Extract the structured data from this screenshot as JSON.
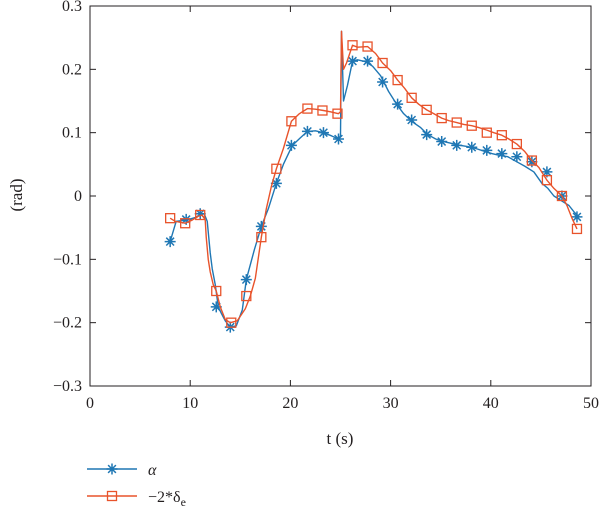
{
  "chart_data": {
    "type": "line",
    "xlabel": "t (s)",
    "ylabel": "(rad)",
    "xlim": [
      0,
      50
    ],
    "ylim": [
      -0.3,
      0.3
    ],
    "x_ticks": [
      0,
      10,
      20,
      30,
      40,
      50
    ],
    "x_tick_labels": [
      "0",
      "10",
      "20",
      "30",
      "40",
      "50"
    ],
    "y_ticks": [
      -0.3,
      -0.2,
      -0.1,
      0,
      0.1,
      0.2,
      0.3
    ],
    "y_tick_labels": [
      "−0.3",
      "−0.2",
      "−0.1",
      "0",
      "0.1",
      "0.2",
      "0.3"
    ],
    "grid": false,
    "legend_position": "below-left",
    "series": [
      {
        "name": "α",
        "color": "#1f77b4",
        "marker": "asterisk",
        "x": [
          8.0,
          8.6,
          9.6,
          10.5,
          11.0,
          11.4,
          11.7,
          12.0,
          12.2,
          12.5,
          12.8,
          13.1,
          13.5,
          14.0,
          14.6,
          15.2,
          15.6,
          16.4,
          17.1,
          17.8,
          18.6,
          19.3,
          20.2,
          21.0,
          21.7,
          22.5,
          23.3,
          24.1,
          24.8,
          25.0,
          25.1,
          25.3,
          25.7,
          26.2,
          26.7,
          27.5,
          28.2,
          29.0,
          29.8,
          30.6,
          31.3,
          32.1,
          33.0,
          33.7,
          34.5,
          35.3,
          36.1,
          36.9,
          37.7,
          38.5,
          39.3,
          40.1,
          40.9,
          41.7,
          42.6,
          43.4,
          44.3,
          45.1,
          45.7,
          46.3,
          47.1,
          47.8,
          48.3,
          48.8
        ],
        "y": [
          -0.072,
          -0.04,
          -0.038,
          -0.034,
          -0.03,
          -0.028,
          -0.04,
          -0.09,
          -0.115,
          -0.14,
          -0.175,
          -0.185,
          -0.197,
          -0.207,
          -0.205,
          -0.18,
          -0.132,
          -0.085,
          -0.048,
          -0.02,
          0.02,
          0.05,
          0.08,
          0.092,
          0.102,
          0.103,
          0.1,
          0.095,
          0.09,
          0.095,
          0.26,
          0.15,
          0.175,
          0.213,
          0.215,
          0.212,
          0.205,
          0.19,
          0.165,
          0.145,
          0.13,
          0.118,
          0.108,
          0.097,
          0.09,
          0.086,
          0.083,
          0.08,
          0.078,
          0.075,
          0.071,
          0.067,
          0.064,
          0.062,
          0.054,
          0.047,
          0.038,
          0.02,
          0.012,
          0.0,
          -0.008,
          -0.015,
          -0.025,
          -0.033
        ],
        "marker_x": [
          8.0,
          9.6,
          11.0,
          12.6,
          14.0,
          15.6,
          17.1,
          18.6,
          20.1,
          21.7,
          23.3,
          24.8,
          26.2,
          27.7,
          29.2,
          30.7,
          32.1,
          33.6,
          35.1,
          36.6,
          38.1,
          39.6,
          41.1,
          42.6,
          44.1,
          45.6,
          47.1,
          48.6
        ],
        "marker_y": [
          -0.072,
          -0.037,
          -0.028,
          -0.175,
          -0.207,
          -0.132,
          -0.048,
          0.02,
          0.08,
          0.102,
          0.1,
          0.09,
          0.213,
          0.213,
          0.18,
          0.145,
          0.12,
          0.097,
          0.086,
          0.08,
          0.077,
          0.072,
          0.067,
          0.062,
          0.054,
          0.038,
          0.0,
          -0.033
        ]
      },
      {
        "name": "−2*δe",
        "color": "#e8532b",
        "marker": "square",
        "x": [
          8.0,
          8.5,
          9.5,
          10.2,
          10.8,
          11.2,
          11.5,
          11.6,
          11.8,
          12.0,
          12.3,
          12.6,
          13.0,
          13.5,
          14.0,
          14.7,
          15.5,
          16.0,
          16.5,
          17.1,
          17.6,
          18.1,
          18.6,
          19.3,
          20.1,
          20.9,
          21.7,
          22.5,
          23.3,
          24.0,
          24.8,
          25.0,
          25.1,
          25.3,
          25.6,
          26.2,
          26.7,
          27.7,
          28.5,
          29.2,
          30.0,
          30.7,
          31.4,
          32.1,
          32.8,
          33.6,
          34.3,
          35.1,
          35.8,
          36.6,
          37.3,
          38.1,
          38.8,
          39.6,
          40.3,
          41.1,
          41.8,
          42.6,
          43.4,
          44.1,
          44.8,
          45.6,
          46.3,
          47.1,
          47.6,
          48.1,
          48.6
        ],
        "y": [
          -0.035,
          -0.04,
          -0.043,
          -0.038,
          -0.032,
          -0.03,
          -0.038,
          -0.065,
          -0.1,
          -0.12,
          -0.14,
          -0.15,
          -0.175,
          -0.195,
          -0.2,
          -0.197,
          -0.178,
          -0.158,
          -0.13,
          -0.065,
          -0.02,
          0.015,
          0.043,
          0.075,
          0.118,
          0.13,
          0.138,
          0.137,
          0.135,
          0.133,
          0.13,
          0.133,
          0.26,
          0.2,
          0.21,
          0.238,
          0.235,
          0.236,
          0.225,
          0.21,
          0.198,
          0.183,
          0.17,
          0.155,
          0.145,
          0.136,
          0.13,
          0.123,
          0.119,
          0.116,
          0.113,
          0.111,
          0.108,
          0.104,
          0.1,
          0.096,
          0.09,
          0.082,
          0.07,
          0.056,
          0.045,
          0.025,
          0.012,
          0.0,
          -0.015,
          -0.035,
          -0.052
        ],
        "marker_x": [
          8.0,
          9.5,
          11.0,
          12.6,
          14.1,
          15.6,
          17.1,
          18.6,
          20.1,
          21.7,
          23.2,
          24.7,
          26.2,
          27.7,
          29.2,
          30.7,
          32.1,
          33.6,
          35.1,
          36.6,
          38.1,
          39.6,
          41.1,
          42.6,
          44.1,
          45.6,
          47.1,
          48.6
        ],
        "marker_y": [
          -0.035,
          -0.043,
          -0.03,
          -0.15,
          -0.2,
          -0.158,
          -0.065,
          0.043,
          0.118,
          0.138,
          0.135,
          0.13,
          0.238,
          0.236,
          0.21,
          0.183,
          0.155,
          0.136,
          0.123,
          0.116,
          0.111,
          0.1,
          0.096,
          0.082,
          0.056,
          0.025,
          0.0,
          -0.052
        ]
      }
    ]
  },
  "legend": {
    "items": [
      {
        "label": "α"
      },
      {
        "label": "−2*δ",
        "sub": "e"
      }
    ]
  }
}
